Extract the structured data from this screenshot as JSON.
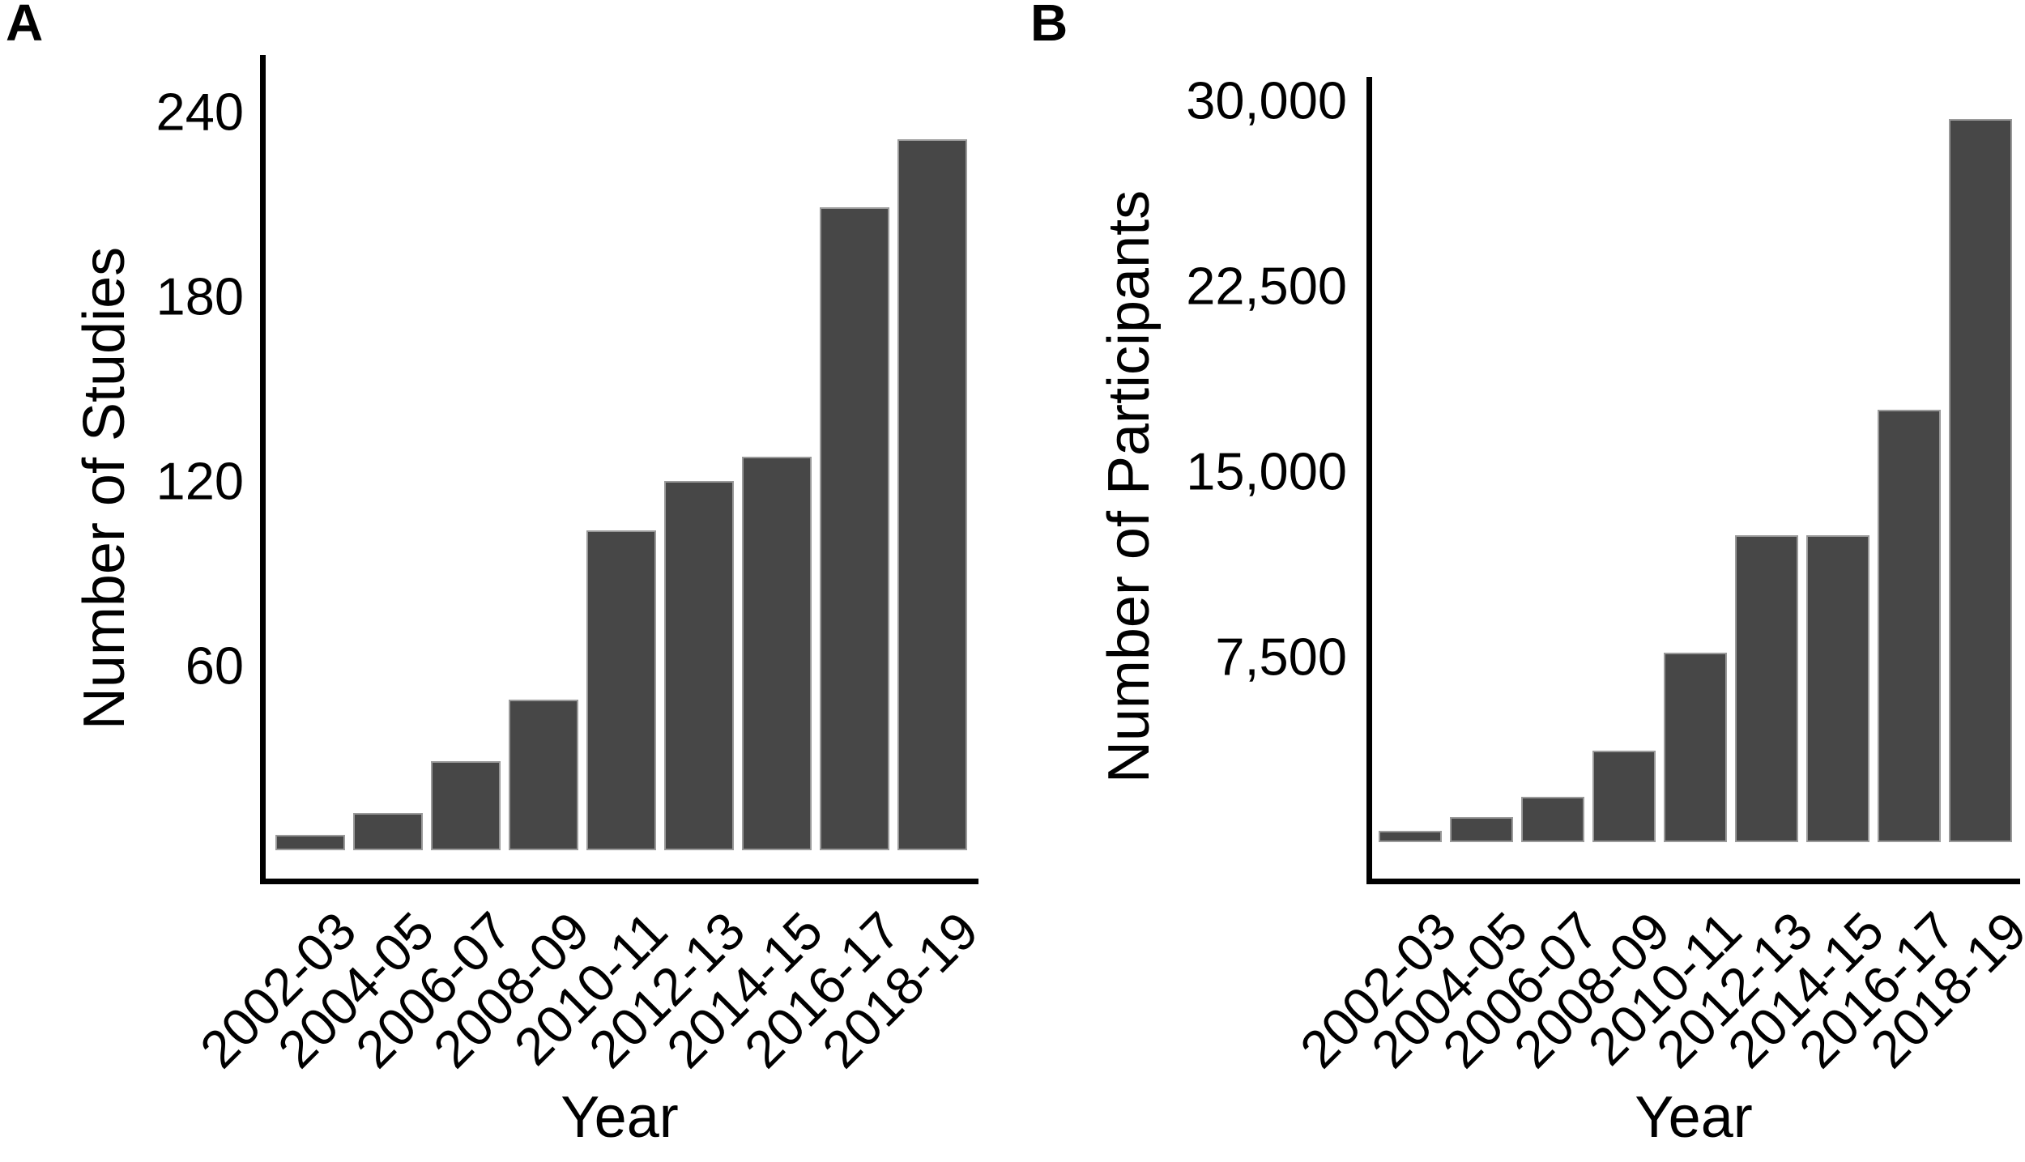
{
  "figure": {
    "background": "#ffffff",
    "bar_fill": "#474747",
    "bar_border": "#9a9a9a",
    "axis_color": "#000000",
    "text_color": "#000000"
  },
  "chart_data": [
    {
      "type": "bar",
      "panel_label": "A",
      "xlabel": "Year",
      "ylabel": "Number of Studies",
      "categories": [
        "2002-03",
        "2004-05",
        "2006-07",
        "2008-09",
        "2010-11",
        "2012-13",
        "2014-15",
        "2016-17",
        "2018-19"
      ],
      "values": [
        5,
        12,
        29,
        49,
        104,
        120,
        128,
        209,
        231
      ],
      "yticks": [
        240,
        180,
        120,
        60
      ],
      "ytick_labels": [
        "240",
        "180",
        "120",
        "60"
      ],
      "ylim": [
        0,
        258
      ],
      "grid": false,
      "legend": "none",
      "x_tick_rotation_deg": 45
    },
    {
      "type": "bar",
      "panel_label": "B",
      "xlabel": "Year",
      "ylabel": "Number of Participants",
      "categories": [
        "2002-03",
        "2004-05",
        "2006-07",
        "2008-09",
        "2010-11",
        "2012-13",
        "2014-15",
        "2016-17",
        "2018-19"
      ],
      "values": [
        450,
        1000,
        1850,
        3700,
        7650,
        12400,
        12400,
        17500,
        29250
      ],
      "yticks": [
        30000,
        22500,
        15000,
        7500
      ],
      "ytick_labels": [
        "30,000",
        "22,500",
        "15,000",
        "7,500"
      ],
      "ylim": [
        0,
        31000
      ],
      "grid": false,
      "legend": "none",
      "x_tick_rotation_deg": 45
    }
  ]
}
